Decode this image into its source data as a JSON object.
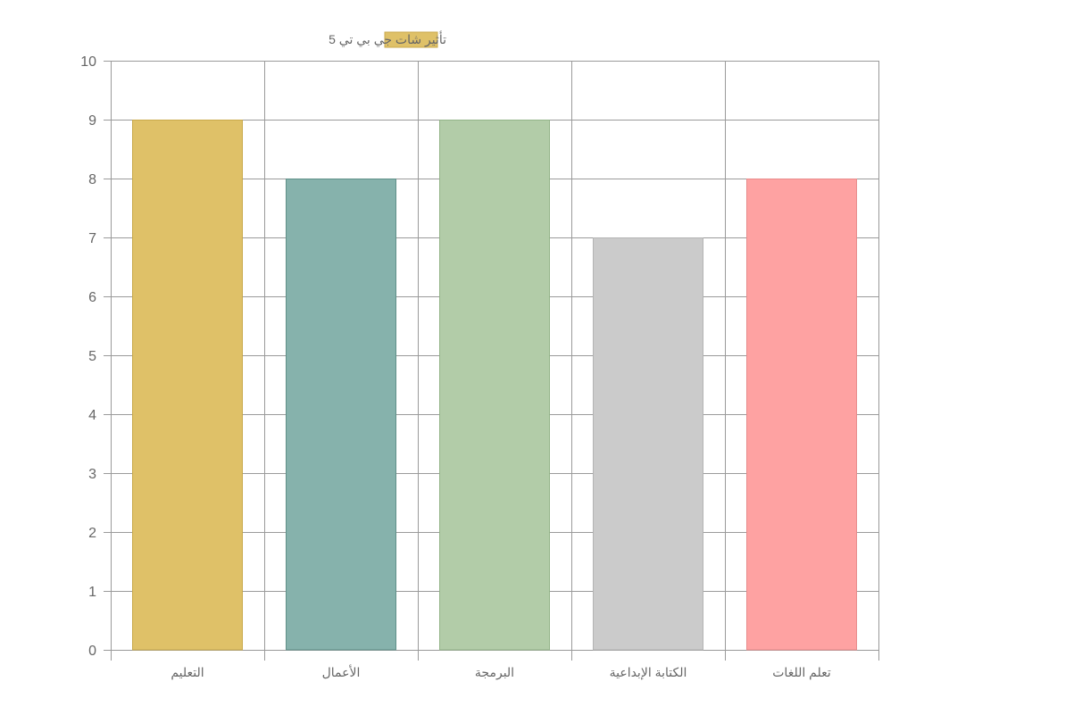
{
  "chart_data": {
    "type": "bar",
    "title": "",
    "xlabel": "",
    "ylabel": "",
    "ylim": [
      0,
      10
    ],
    "yticks": [
      0,
      1,
      2,
      3,
      4,
      5,
      6,
      7,
      8,
      9,
      10
    ],
    "categories": [
      "التعليم",
      "الأعمال",
      "البرمجة",
      "الكتابة الإبداعية",
      "تعلم اللغات"
    ],
    "series": [
      {
        "name": "تأثير شات جي بي تي 5",
        "values": [
          9,
          8,
          9,
          7,
          8
        ]
      }
    ],
    "bar_colors": [
      "#dfc168",
      "#86b2ac",
      "#b2cca8",
      "#cbcbcb",
      "#fea2a2"
    ],
    "bar_border_colors": [
      "#c9a94b",
      "#5f8f88",
      "#93b488",
      "#b3b3b3",
      "#e88b8b"
    ],
    "legend_color": "#dfc168",
    "legend_border_color": "#c9a94b",
    "legend_position": "top",
    "grid": true
  }
}
